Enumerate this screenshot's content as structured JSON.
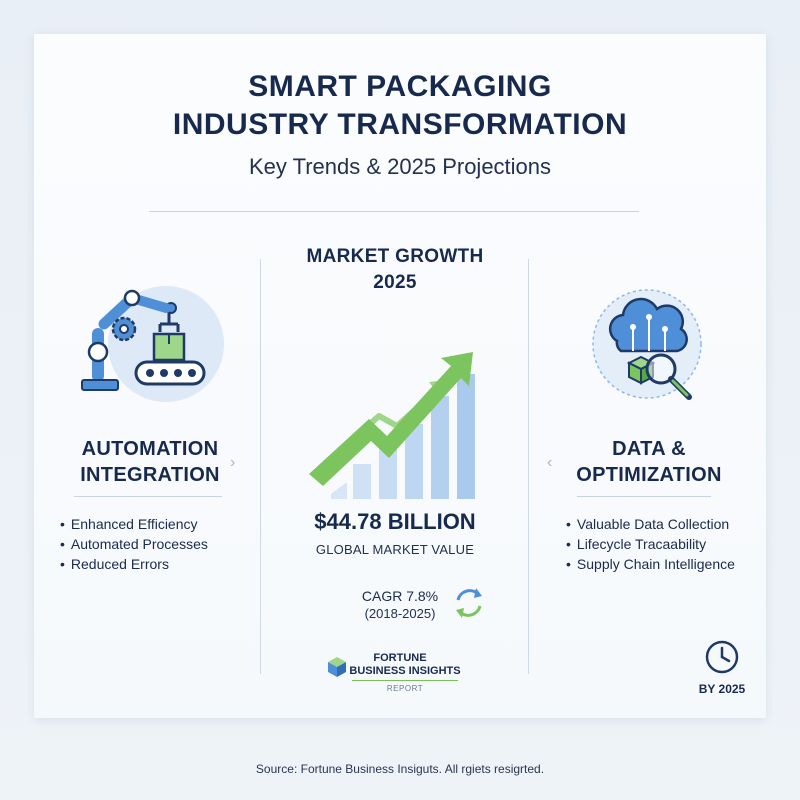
{
  "header": {
    "title_line1": "SMART PACKAGING",
    "title_line2": "INDUSTRY TRANSFORMATION",
    "subtitle": "Key Trends & 2025 Projections"
  },
  "left": {
    "title_line1": "AUTOMATION",
    "title_line2": "INTEGRATION",
    "bullets": [
      "Enhanced Efficiency",
      "Automated Processes",
      "Reduced Errors"
    ],
    "icon": "robot-arm-conveyor-icon"
  },
  "center": {
    "title_line1": "MARKET GROWTH",
    "title_line2": "2025",
    "value": "$44.78 BILLION",
    "value_label": "GLOBAL MARKET VALUE",
    "cagr": "CAGR 7.8%",
    "cagr_years": "(2018-2025)",
    "icon": "growth-chart-arrow-icon"
  },
  "right": {
    "title_line1": "DATA &",
    "title_line2": "OPTIMIZATION",
    "bullets": [
      "Valuable Data Collection",
      "Lifecycle Tracaability",
      "Supply Chain Intelligence"
    ],
    "icon": "cloud-data-magnifier-icon",
    "footer": "BY 2025"
  },
  "logo": {
    "line1": "FORTUNE",
    "line2": "BUSINESS INSIGHTS",
    "line3": "REPORT"
  },
  "source": "Source: Fortune Business Insiguts. All rgiets resigrted.",
  "colors": {
    "navy": "#172a4e",
    "blue": "#4f8fd8",
    "green": "#7cc45e",
    "light_blue": "#d8e7f6"
  }
}
